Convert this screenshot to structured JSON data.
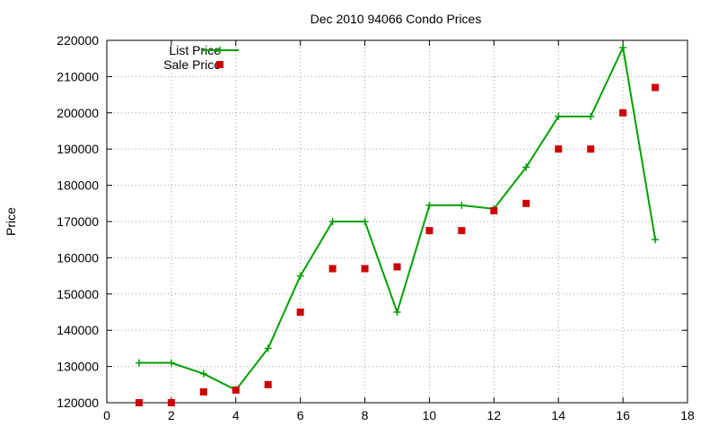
{
  "chart_data": {
    "type": "line",
    "title": "Dec 2010 94066 Condo Prices",
    "xlabel": "",
    "ylabel": "Price",
    "xlim": [
      0,
      18
    ],
    "ylim": [
      120000,
      220000
    ],
    "xticks": [
      0,
      2,
      4,
      6,
      8,
      10,
      12,
      14,
      16,
      18
    ],
    "yticks": [
      120000,
      130000,
      140000,
      150000,
      160000,
      170000,
      180000,
      190000,
      200000,
      210000,
      220000
    ],
    "grid": true,
    "legend_position": "top-left",
    "series": [
      {
        "name": "List Price",
        "style": "line+cross",
        "color": "#00a000",
        "x": [
          1,
          2,
          3,
          4,
          5,
          6,
          7,
          8,
          9,
          10,
          11,
          12,
          13,
          14,
          15,
          16,
          17
        ],
        "y": [
          131000,
          131000,
          128000,
          123500,
          135000,
          155000,
          170000,
          170000,
          145000,
          174500,
          174500,
          173500,
          185000,
          199000,
          199000,
          218000,
          165000
        ]
      },
      {
        "name": "Sale Price",
        "style": "square-marker",
        "color": "#cc0000",
        "x": [
          1,
          2,
          3,
          4,
          5,
          6,
          7,
          8,
          9,
          10,
          11,
          12,
          13,
          14,
          15,
          16,
          17
        ],
        "y": [
          120000,
          120000,
          123000,
          123500,
          125000,
          145000,
          157000,
          157000,
          157500,
          167500,
          167500,
          173000,
          175000,
          190000,
          190000,
          200000,
          207000
        ]
      }
    ]
  }
}
